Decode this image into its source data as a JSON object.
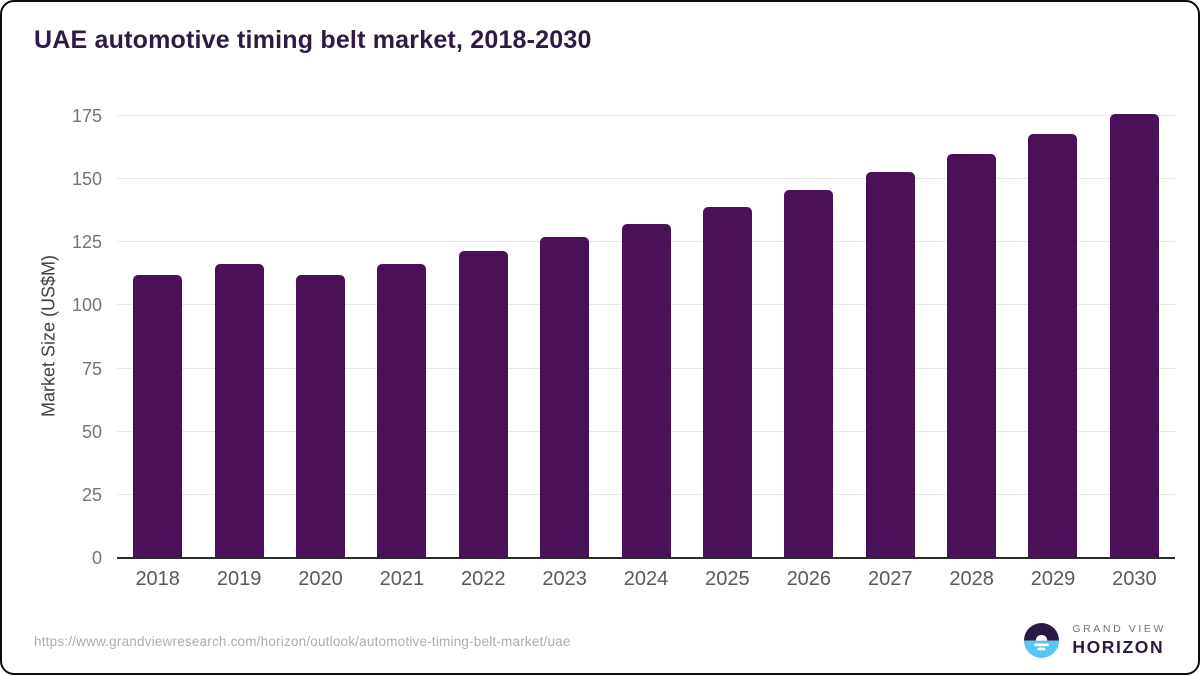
{
  "title": "UAE automotive timing belt market, 2018-2030",
  "chart_data": {
    "type": "bar",
    "title": "UAE automotive timing belt market, 2018-2030",
    "categories": [
      "2018",
      "2019",
      "2020",
      "2021",
      "2022",
      "2023",
      "2024",
      "2025",
      "2026",
      "2027",
      "2028",
      "2029",
      "2030"
    ],
    "values": [
      111.9,
      116.5,
      112.1,
      116.3,
      121.4,
      127.0,
      132.4,
      138.8,
      145.6,
      152.8,
      160.1,
      168.0,
      175.9
    ],
    "xlabel": "",
    "ylabel": "Market Size (US$M)",
    "ylim": [
      0,
      175
    ],
    "yticks": [
      0,
      25,
      50,
      75,
      100,
      125,
      150,
      175
    ],
    "grid": "horizontal",
    "legend": "none"
  },
  "colors": {
    "bar": "#4a1158",
    "title": "#2f1a45",
    "gridline": "#e7e7e7",
    "axis_line": "#2b2b2b",
    "tick_label": "#747474",
    "x_label": "#57595d",
    "url_text": "#adadad",
    "logo_purple": "#2a1a41",
    "logo_blue": "#58c6f2"
  },
  "footer": {
    "source_url": "https://www.grandviewresearch.com/horizon/outlook/automotive-timing-belt-market/uae",
    "logo": {
      "line1": "GRAND VIEW",
      "line2": "HORIZON"
    }
  }
}
